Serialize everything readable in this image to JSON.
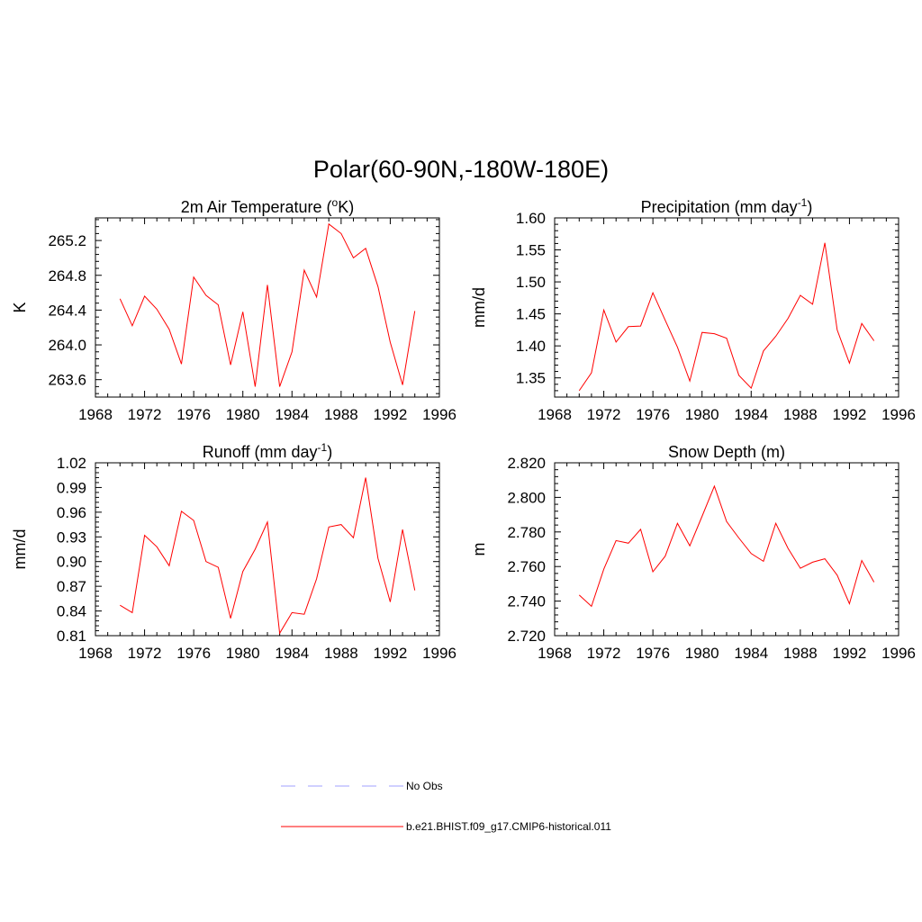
{
  "figure_title": "Polar(60-90N,-180W-180E)",
  "legend": [
    {
      "label": "No Obs",
      "color": "#a0a0ff",
      "dash": "dashed"
    },
    {
      "label": "b.e21.BHIST.f09_g17.CMIP6-historical.011",
      "color": "#ff0000",
      "dash": "solid"
    }
  ],
  "chart_data": [
    {
      "type": "line",
      "title": "2m Air Temperature (",
      "title_sup": "o",
      "title_suffix": "K)",
      "ylabel": "K",
      "xlim": [
        1968,
        1996
      ],
      "ylim": [
        263.4,
        265.46
      ],
      "xticks": [
        1968,
        1972,
        1976,
        1980,
        1984,
        1988,
        1992,
        1996
      ],
      "yticks": [
        263.6,
        264.0,
        264.4,
        264.8,
        265.2
      ],
      "ytick_labels": [
        "263.6",
        "264.0",
        "264.4",
        "264.8",
        "265.2"
      ],
      "x": [
        1970,
        1971,
        1972,
        1973,
        1974,
        1975,
        1976,
        1977,
        1978,
        1979,
        1980,
        1981,
        1982,
        1983,
        1984,
        1985,
        1986,
        1987,
        1988,
        1989,
        1990,
        1991,
        1992,
        1993,
        1994
      ],
      "series": [
        {
          "name": "b.e21.BHIST.f09_g17.CMIP6-historical.011",
          "color": "#ff0000",
          "values": [
            264.53,
            264.22,
            264.56,
            264.41,
            264.18,
            263.78,
            264.78,
            264.57,
            264.46,
            263.77,
            264.38,
            263.52,
            264.69,
            263.52,
            263.92,
            264.86,
            264.55,
            265.39,
            265.28,
            265.0,
            265.11,
            264.67,
            264.03,
            263.54,
            264.39
          ]
        }
      ]
    },
    {
      "type": "line",
      "title": "Precipitation (mm day",
      "title_sup": "-1",
      "title_suffix": ")",
      "ylabel": "mm/d",
      "xlim": [
        1968,
        1996
      ],
      "ylim": [
        1.32,
        1.6
      ],
      "xticks": [
        1968,
        1972,
        1976,
        1980,
        1984,
        1988,
        1992,
        1996
      ],
      "yticks": [
        1.35,
        1.4,
        1.45,
        1.5,
        1.55,
        1.6
      ],
      "ytick_labels": [
        "1.35",
        "1.40",
        "1.45",
        "1.50",
        "1.55",
        "1.60"
      ],
      "x": [
        1970,
        1971,
        1972,
        1973,
        1974,
        1975,
        1976,
        1977,
        1978,
        1979,
        1980,
        1981,
        1982,
        1983,
        1984,
        1985,
        1986,
        1987,
        1988,
        1989,
        1990,
        1991,
        1992,
        1993,
        1994
      ],
      "series": [
        {
          "name": "b.e21.BHIST.f09_g17.CMIP6-historical.011",
          "color": "#ff0000",
          "values": [
            1.33,
            1.358,
            1.456,
            1.406,
            1.43,
            1.431,
            1.483,
            1.44,
            1.398,
            1.345,
            1.421,
            1.419,
            1.412,
            1.354,
            1.334,
            1.392,
            1.415,
            1.443,
            1.479,
            1.465,
            1.561,
            1.425,
            1.373,
            1.435,
            1.408
          ]
        }
      ]
    },
    {
      "type": "line",
      "title": "Runoff (mm day",
      "title_sup": "-1",
      "title_suffix": ")",
      "ylabel": "mm/d",
      "xlim": [
        1968,
        1996
      ],
      "ylim": [
        0.81,
        1.02
      ],
      "xticks": [
        1968,
        1972,
        1976,
        1980,
        1984,
        1988,
        1992,
        1996
      ],
      "yticks": [
        0.81,
        0.84,
        0.87,
        0.9,
        0.93,
        0.96,
        0.99,
        1.02
      ],
      "ytick_labels": [
        "0.81",
        "0.84",
        "0.87",
        "0.90",
        "0.93",
        "0.96",
        "0.99",
        "1.02"
      ],
      "x": [
        1970,
        1971,
        1972,
        1973,
        1974,
        1975,
        1976,
        1977,
        1978,
        1979,
        1980,
        1981,
        1982,
        1983,
        1984,
        1985,
        1986,
        1987,
        1988,
        1989,
        1990,
        1991,
        1992,
        1993,
        1994
      ],
      "series": [
        {
          "name": "b.e21.BHIST.f09_g17.CMIP6-historical.011",
          "color": "#ff0000",
          "values": [
            0.847,
            0.838,
            0.932,
            0.918,
            0.895,
            0.961,
            0.95,
            0.9,
            0.893,
            0.831,
            0.888,
            0.915,
            0.948,
            0.813,
            0.838,
            0.836,
            0.879,
            0.942,
            0.945,
            0.929,
            1.002,
            0.904,
            0.851,
            0.939,
            0.865
          ]
        }
      ]
    },
    {
      "type": "line",
      "title": "Snow Depth (m)",
      "title_sup": "",
      "title_suffix": "",
      "ylabel": "m",
      "xlim": [
        1968,
        1996
      ],
      "ylim": [
        2.72,
        2.82
      ],
      "xticks": [
        1968,
        1972,
        1976,
        1980,
        1984,
        1988,
        1992,
        1996
      ],
      "yticks": [
        2.72,
        2.74,
        2.76,
        2.78,
        2.8,
        2.82
      ],
      "ytick_labels": [
        "2.720",
        "2.740",
        "2.760",
        "2.780",
        "2.800",
        "2.820"
      ],
      "x": [
        1970,
        1971,
        1972,
        1973,
        1974,
        1975,
        1976,
        1977,
        1978,
        1979,
        1980,
        1981,
        1982,
        1983,
        1984,
        1985,
        1986,
        1987,
        1988,
        1989,
        1990,
        1991,
        1992,
        1993,
        1994
      ],
      "series": [
        {
          "name": "b.e21.BHIST.f09_g17.CMIP6-historical.011",
          "color": "#ff0000",
          "values": [
            2.7435,
            2.737,
            2.7585,
            2.775,
            2.7735,
            2.7815,
            2.757,
            2.766,
            2.785,
            2.772,
            2.789,
            2.8065,
            2.786,
            2.7765,
            2.7675,
            2.763,
            2.785,
            2.7705,
            2.759,
            2.7625,
            2.7645,
            2.755,
            2.7385,
            2.7635,
            2.751
          ]
        }
      ]
    }
  ]
}
